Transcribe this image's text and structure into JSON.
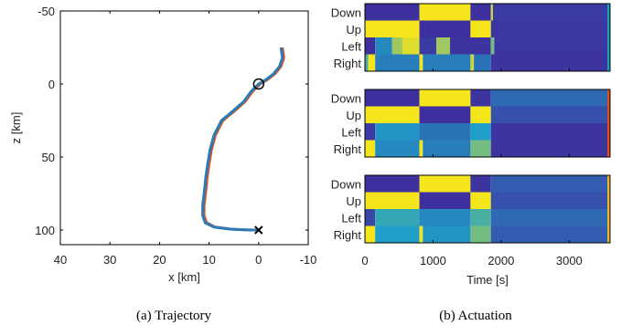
{
  "colors": {
    "background": "#ffffff",
    "axes": "#000000",
    "trajectory_main": "#2b7bba",
    "trajectory_shadow": "#d95319",
    "heat_high": "#f5e51b",
    "heat_low": "#3e2f9e",
    "heat_mid": "#1fa0c8"
  },
  "captions": {
    "left": "(a) Trajectory",
    "right": "(b) Actuation"
  },
  "chart_data": [
    {
      "type": "line",
      "title": "",
      "xlabel": "x [km]",
      "ylabel": "z [km]",
      "xlim": [
        40,
        -10
      ],
      "ylim": [
        -50,
        110
      ],
      "x_reversed": true,
      "y_reversed": true,
      "xticks": [
        40,
        30,
        20,
        10,
        0,
        -10
      ],
      "yticks": [
        -50,
        0,
        50,
        100
      ],
      "grid": false,
      "series": [
        {
          "x": [
            -4.5,
            -4.8,
            -4.2,
            -3.0,
            -1.5,
            0,
            1.5,
            3.0,
            5.0,
            7.5,
            9.0,
            9.8,
            10.3,
            10.7,
            11.0,
            11.3,
            11.3,
            10.8,
            9.0,
            6.0,
            3.0,
            1.0,
            0
          ],
          "y": [
            -25,
            -18,
            -12,
            -7,
            -3,
            0,
            5,
            12,
            18,
            25,
            35,
            45,
            55,
            65,
            75,
            83,
            90,
            95,
            98,
            99.3,
            99.8,
            100,
            100
          ]
        }
      ],
      "markers": [
        {
          "symbol": "circle",
          "x": 0,
          "y": 0
        },
        {
          "symbol": "x",
          "x": 0,
          "y": 100
        }
      ]
    },
    {
      "type": "heatmap",
      "xlabel": "Time [s]",
      "xlim": [
        0,
        3600
      ],
      "xticks": [
        0,
        1000,
        2000,
        3000
      ],
      "rows": [
        "Down",
        "Up",
        "Left",
        "Right"
      ],
      "panels": [
        {
          "side_color": "#1aa0b5",
          "rows": [
            [
              [
                0,
                800,
                0.0
              ],
              [
                800,
                1550,
                1.0
              ],
              [
                1550,
                1850,
                0.0
              ],
              [
                1850,
                1880,
                0.9
              ],
              [
                1880,
                3600,
                0.05
              ]
            ],
            [
              [
                0,
                800,
                1.0
              ],
              [
                800,
                1550,
                0.0
              ],
              [
                1550,
                1850,
                1.0
              ],
              [
                1850,
                3600,
                0.03
              ]
            ],
            [
              [
                0,
                150,
                0.0
              ],
              [
                150,
                400,
                0.4
              ],
              [
                400,
                550,
                0.8
              ],
              [
                550,
                800,
                0.95
              ],
              [
                800,
                1050,
                0.05
              ],
              [
                1050,
                1250,
                0.8
              ],
              [
                1250,
                1850,
                0.02
              ],
              [
                1850,
                1900,
                0.7
              ],
              [
                1900,
                3600,
                0.03
              ]
            ],
            [
              [
                0,
                50,
                0.6
              ],
              [
                50,
                150,
                1.0
              ],
              [
                150,
                800,
                0.35
              ],
              [
                800,
                850,
                1.0
              ],
              [
                850,
                1550,
                0.35
              ],
              [
                1550,
                1600,
                0.9
              ],
              [
                1600,
                1850,
                0.3
              ],
              [
                1850,
                3600,
                0.02
              ]
            ]
          ]
        },
        {
          "side_color": "#d9501a",
          "rows": [
            [
              [
                0,
                800,
                0.0
              ],
              [
                800,
                1550,
                1.0
              ],
              [
                1550,
                1850,
                0.02
              ],
              [
                1850,
                3600,
                0.25
              ]
            ],
            [
              [
                0,
                800,
                1.0
              ],
              [
                800,
                1550,
                0.0
              ],
              [
                1550,
                1850,
                1.0
              ],
              [
                1850,
                3600,
                0.15
              ]
            ],
            [
              [
                0,
                150,
                0.05
              ],
              [
                150,
                800,
                0.45
              ],
              [
                800,
                1550,
                0.3
              ],
              [
                1550,
                1850,
                0.5
              ],
              [
                1850,
                3600,
                0.02
              ]
            ],
            [
              [
                0,
                150,
                1.0
              ],
              [
                150,
                800,
                0.4
              ],
              [
                800,
                850,
                1.0
              ],
              [
                850,
                1550,
                0.35
              ],
              [
                1550,
                1850,
                0.7
              ],
              [
                1850,
                3600,
                0.02
              ]
            ]
          ]
        },
        {
          "side_color": "#e8b22a",
          "rows": [
            [
              [
                0,
                800,
                0.0
              ],
              [
                800,
                1550,
                1.0
              ],
              [
                1550,
                1850,
                0.02
              ],
              [
                1850,
                3600,
                0.2
              ]
            ],
            [
              [
                0,
                800,
                1.0
              ],
              [
                800,
                1550,
                0.0
              ],
              [
                1550,
                1850,
                1.0
              ],
              [
                1850,
                3600,
                0.15
              ]
            ],
            [
              [
                0,
                150,
                0.1
              ],
              [
                150,
                800,
                0.55
              ],
              [
                800,
                1550,
                0.4
              ],
              [
                1550,
                1850,
                0.6
              ],
              [
                1850,
                3600,
                0.25
              ]
            ],
            [
              [
                0,
                150,
                1.0
              ],
              [
                150,
                800,
                0.5
              ],
              [
                800,
                850,
                1.0
              ],
              [
                850,
                1550,
                0.45
              ],
              [
                1550,
                1850,
                0.7
              ],
              [
                1850,
                3600,
                0.2
              ]
            ]
          ]
        }
      ]
    }
  ]
}
